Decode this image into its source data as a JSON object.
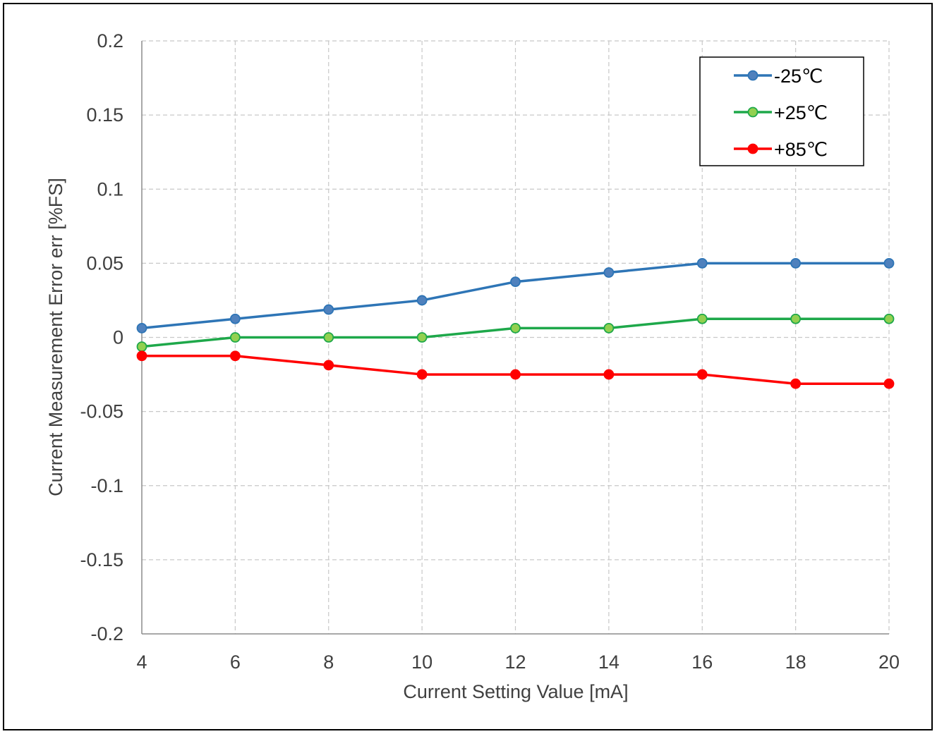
{
  "chart_data": {
    "type": "line",
    "title": "",
    "xlabel": "Current Setting Value [mA]",
    "ylabel": "Current Measurement Error err [%FS]",
    "x": [
      4,
      6,
      8,
      10,
      12,
      14,
      16,
      18,
      20
    ],
    "x_ticks": [
      "4",
      "6",
      "8",
      "10",
      "12",
      "14",
      "16",
      "18",
      "20"
    ],
    "y_ticks": [
      "0.2",
      "0.15",
      "0.1",
      "0.05",
      "0",
      "-0.05",
      "-0.1",
      "-0.15",
      "-0.2"
    ],
    "xlim": [
      4,
      20
    ],
    "ylim": [
      -0.2,
      0.2
    ],
    "grid": true,
    "legend_position": "top-right",
    "series": [
      {
        "name": "-25℃",
        "color": "#2E75B6",
        "marker_fill": "#4F81BD",
        "values": [
          0.00625,
          0.0125,
          0.01875,
          0.025,
          0.0375,
          0.04375,
          0.05,
          0.05,
          0.05
        ]
      },
      {
        "name": "+25℃",
        "color": "#1EA84A",
        "marker_fill": "#92D050",
        "values": [
          -0.00625,
          0,
          0,
          0,
          0.00625,
          0.00625,
          0.0125,
          0.0125,
          0.0125
        ]
      },
      {
        "name": "+85℃",
        "color": "#FF0000",
        "marker_fill": "#FF0000",
        "values": [
          -0.0125,
          -0.0125,
          -0.01875,
          -0.025,
          -0.025,
          -0.025,
          -0.025,
          -0.03125,
          -0.03125
        ]
      }
    ]
  }
}
